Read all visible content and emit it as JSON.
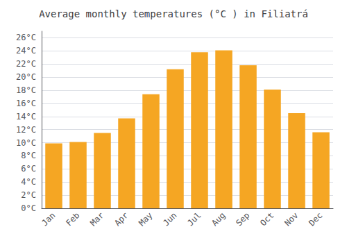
{
  "chart_data": {
    "type": "bar",
    "title": "Average monthly temperatures (°C ) in Filiatrá",
    "categories": [
      "Jan",
      "Feb",
      "Mar",
      "Apr",
      "May",
      "Jun",
      "Jul",
      "Aug",
      "Sep",
      "Oct",
      "Nov",
      "Dec"
    ],
    "values": [
      9.9,
      10.1,
      11.5,
      13.7,
      17.4,
      21.2,
      23.8,
      24.1,
      21.8,
      18.1,
      14.5,
      11.6
    ],
    "color": "#F5A623",
    "ylim": [
      0,
      27
    ],
    "yticks": [
      {
        "value": 0,
        "label": "0°C"
      },
      {
        "value": 2,
        "label": "2°C"
      },
      {
        "value": 4,
        "label": "4°C"
      },
      {
        "value": 6,
        "label": "6°C"
      },
      {
        "value": 8,
        "label": "8°C"
      },
      {
        "value": 10,
        "label": "10°C"
      },
      {
        "value": 12,
        "label": "12°C"
      },
      {
        "value": 14,
        "label": "14°C"
      },
      {
        "value": 16,
        "label": "16°C"
      },
      {
        "value": 18,
        "label": "18°C"
      },
      {
        "value": 20,
        "label": "20°C"
      },
      {
        "value": 22,
        "label": "22°C"
      },
      {
        "value": 24,
        "label": "24°C"
      },
      {
        "value": 26,
        "label": "26°C"
      }
    ],
    "grid": true
  }
}
